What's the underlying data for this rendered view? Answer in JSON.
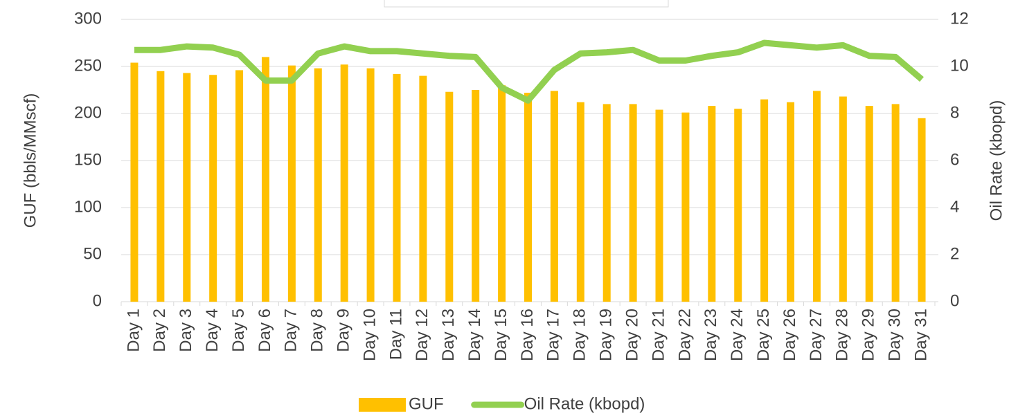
{
  "chart_data": {
    "type": "bar_line",
    "categories": [
      "Day 1",
      "Day 2",
      "Day 3",
      "Day 4",
      "Day 5",
      "Day 6",
      "Day 7",
      "Day 8",
      "Day 9",
      "Day 10",
      "Day 11",
      "Day 12",
      "Day 13",
      "Day 14",
      "Day 15",
      "Day 16",
      "Day 17",
      "Day 18",
      "Day 19",
      "Day 20",
      "Day 21",
      "Day 22",
      "Day 23",
      "Day 24",
      "Day 25",
      "Day 26",
      "Day 27",
      "Day 28",
      "Day 29",
      "Day 30",
      "Day 31"
    ],
    "series": [
      {
        "name": "GUF",
        "type": "bar",
        "color": "#ffc000",
        "axis": "y",
        "values": [
          254,
          245,
          243,
          241,
          246,
          260,
          251,
          248,
          252,
          248,
          242,
          240,
          223,
          225,
          230,
          222,
          224,
          212,
          210,
          210,
          204,
          201,
          208,
          205,
          215,
          212,
          224,
          218,
          208,
          210,
          195
        ]
      },
      {
        "name": "Oil Rate (kbopd)",
        "type": "line",
        "color": "#92d050",
        "axis": "y2",
        "values": [
          10.7,
          10.7,
          10.85,
          10.8,
          10.5,
          9.4,
          9.4,
          10.55,
          10.85,
          10.65,
          10.65,
          10.55,
          10.45,
          10.4,
          9.1,
          8.55,
          9.85,
          10.55,
          10.6,
          10.7,
          10.25,
          10.25,
          10.45,
          10.6,
          11.0,
          10.9,
          10.8,
          10.9,
          10.45,
          10.4,
          9.45
        ]
      }
    ],
    "ylabel": "GUF (bbls/MMscf)",
    "y2label": "Oil Rate (kbopd)",
    "ylim": [
      0,
      300
    ],
    "yticks": [
      0,
      50,
      100,
      150,
      200,
      250,
      300
    ],
    "y2lim": [
      0,
      12
    ],
    "y2ticks": [
      0,
      2,
      4,
      6,
      8,
      10,
      12
    ],
    "grid": true,
    "legend": "bottom"
  }
}
